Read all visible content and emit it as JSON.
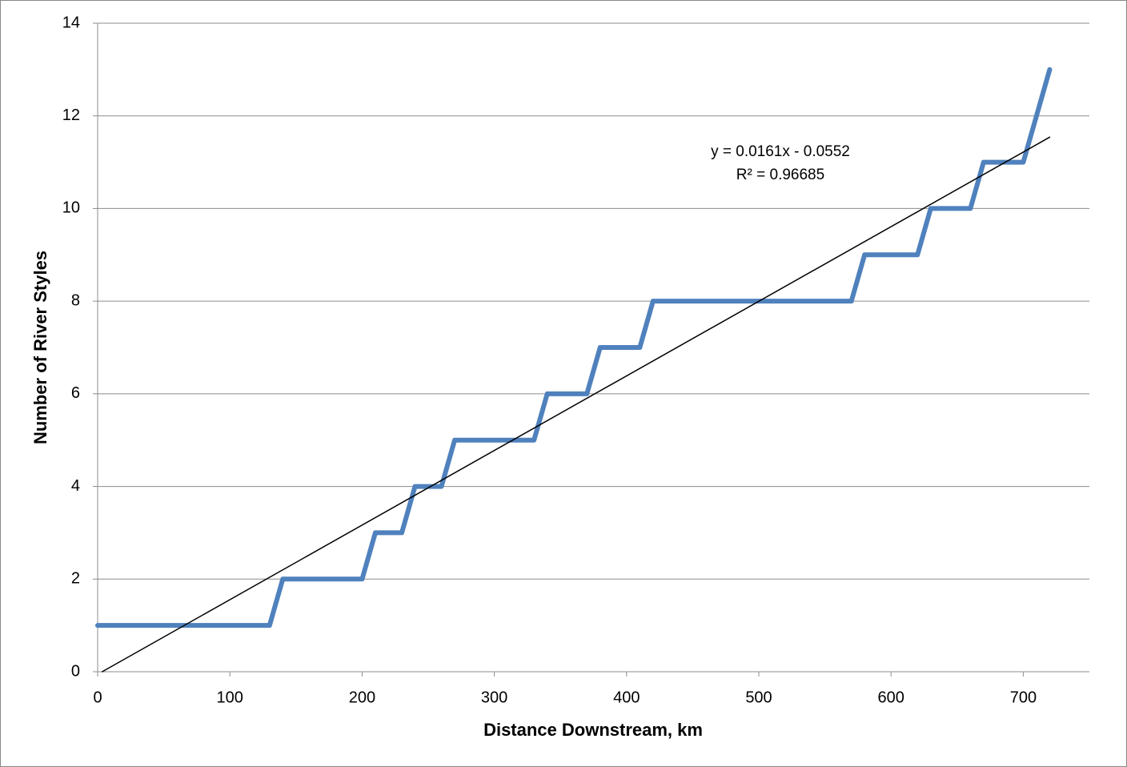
{
  "chart_data": {
    "type": "line",
    "x_label": "Distance Downstream, km",
    "y_label": "Number of River Styles",
    "annotations": [
      "y = 0.0161x - 0.0552",
      "R² = 0.96685"
    ],
    "series": [
      {
        "color": "#4f81bd",
        "x": [
          0,
          130,
          140,
          200,
          210,
          230,
          240,
          260,
          270,
          330,
          340,
          370,
          380,
          410,
          420,
          570,
          580,
          620,
          630,
          660,
          670,
          700,
          720
        ],
        "values": [
          1,
          1,
          2,
          2,
          3,
          3,
          4,
          4,
          5,
          5,
          6,
          6,
          7,
          7,
          8,
          8,
          9,
          9,
          10,
          10,
          11,
          11,
          13
        ]
      },
      {
        "color": "#000000",
        "x": [
          3.43,
          720
        ],
        "values": [
          0,
          11.54
        ]
      }
    ],
    "xlim": [
      0,
      750
    ],
    "xticks": [
      0,
      100,
      200,
      300,
      400,
      500,
      600,
      700
    ],
    "ylim": [
      0,
      14
    ],
    "yticks": [
      0,
      2,
      4,
      6,
      8,
      10,
      12,
      14
    ],
    "grid": true
  }
}
